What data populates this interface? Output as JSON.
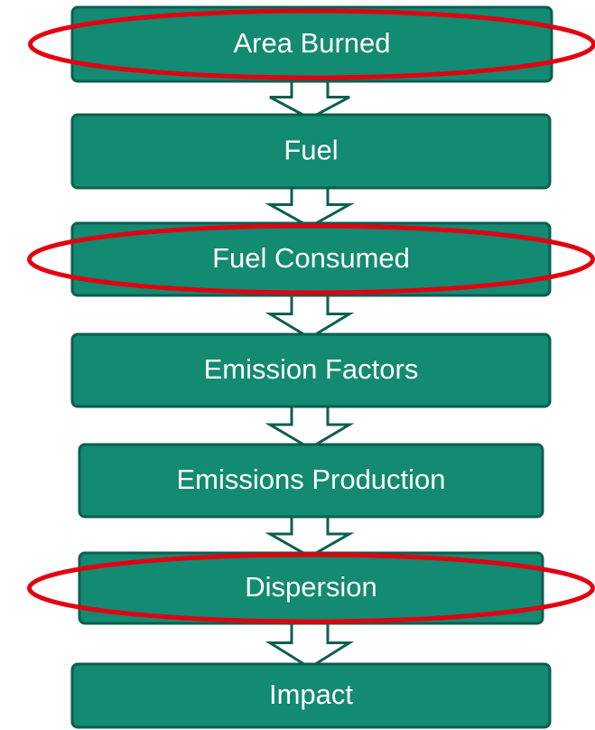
{
  "nodes": [
    {
      "label": "Area Burned",
      "highlighted": true
    },
    {
      "label": "Fuel",
      "highlighted": false
    },
    {
      "label": "Fuel Consumed",
      "highlighted": true
    },
    {
      "label": "Emission Factors",
      "highlighted": false
    },
    {
      "label": "Emissions Production",
      "highlighted": false
    },
    {
      "label": "Dispersion",
      "highlighted": true
    },
    {
      "label": "Impact",
      "highlighted": false
    }
  ]
}
